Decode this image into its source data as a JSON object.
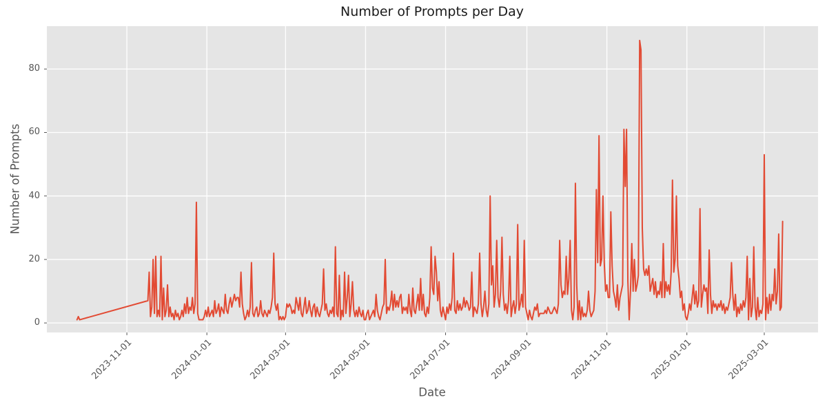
{
  "chart_data": {
    "type": "line",
    "title": "Number of Prompts per Day",
    "xlabel": "Date",
    "ylabel": "Number of Prompts",
    "x_tick_labels": [
      "2023-11-01",
      "2024-01-01",
      "2024-03-01",
      "2024-05-01",
      "2024-07-01",
      "2024-09-01",
      "2024-11-01",
      "2025-01-01",
      "2025-03-01"
    ],
    "y_ticks": [
      0,
      20,
      40,
      60,
      80
    ],
    "xlim": [
      "2023-09-01",
      "2025-04-11"
    ],
    "ylim": [
      -3,
      93.5
    ],
    "grid": true,
    "legend": "none",
    "x_tick_rotation_deg": 45,
    "style": {
      "line_color": "#E24A33",
      "plot_bg": "#E5E5E5",
      "grid_color": "#FFFFFF",
      "tick_color": "#555555",
      "label_color": "#555555",
      "title_color": "#1a1a1a",
      "fig_bg": "#FFFFFF"
    },
    "series": [
      {
        "name": "prompts_per_day",
        "segments": [
          {
            "start": "2023-09-24",
            "values": [
              1,
              2,
              1
            ]
          },
          {
            "start": "2023-11-17",
            "values": [
              7,
              16,
              2,
              5,
              20,
              3,
              21,
              2,
              4,
              2,
              21,
              1,
              11,
              2,
              4,
              12,
              2,
              5,
              2,
              3,
              1,
              4,
              2,
              3,
              1,
              2,
              4,
              2,
              6,
              3,
              8,
              3,
              5,
              4,
              8,
              3,
              6,
              38,
              3,
              1,
              1,
              1,
              1,
              2,
              4,
              2,
              5,
              2,
              3,
              4,
              2,
              7,
              3,
              4,
              6,
              2,
              5,
              4,
              3,
              9,
              4,
              3,
              6,
              8,
              5,
              7,
              9,
              7,
              8,
              8,
              5,
              16,
              6,
              3,
              1,
              2,
              4,
              2,
              5,
              19,
              3,
              2,
              4,
              5,
              2,
              3,
              7,
              3,
              2,
              4,
              3,
              2,
              4,
              3,
              5,
              8,
              22,
              6,
              4,
              6,
              1,
              2,
              1,
              2,
              1,
              2,
              6,
              5,
              6,
              5,
              3,
              4,
              3,
              8,
              6,
              4,
              8,
              3,
              2,
              5,
              8,
              3,
              4,
              7,
              4,
              2,
              5,
              6,
              2,
              5,
              3,
              2,
              4,
              6,
              17,
              4,
              6,
              3,
              2,
              4,
              3,
              5,
              2,
              24,
              3,
              2,
              15,
              1,
              4,
              2,
              16,
              3,
              8,
              15,
              2,
              6,
              13,
              4,
              2,
              4,
              2,
              5,
              3,
              2,
              4,
              1,
              1,
              3,
              4,
              1,
              2,
              3,
              4,
              2,
              9,
              4,
              2,
              1,
              3,
              5,
              6,
              20,
              3,
              5,
              4,
              6,
              10,
              4,
              9,
              5,
              7,
              5,
              8,
              9,
              3,
              5,
              4,
              5,
              3,
              9,
              4,
              2,
              11,
              4,
              3,
              6,
              9,
              4,
              14,
              4,
              9,
              3,
              2,
              5,
              3,
              8,
              24,
              11,
              9,
              21,
              16,
              7,
              13,
              4,
              2,
              5,
              3,
              1,
              5,
              3,
              6,
              4,
              8,
              22,
              4,
              3,
              7,
              4,
              6,
              4,
              5,
              8,
              5,
              7,
              6,
              4,
              5,
              16,
              2,
              5,
              4,
              3,
              6,
              22,
              6,
              2,
              5,
              10,
              4,
              2,
              6,
              40,
              12,
              18,
              5,
              9,
              26,
              8,
              5,
              10,
              27,
              9,
              4,
              6,
              3,
              7,
              21,
              2,
              5,
              7,
              3,
              6,
              31,
              4,
              6,
              9,
              5,
              26,
              5,
              3,
              1,
              4,
              2,
              1,
              3,
              5,
              4,
              6,
              2,
              3,
              3,
              3,
              3,
              4,
              3,
              5,
              4,
              3,
              3,
              4,
              5,
              4,
              3,
              6,
              26,
              12,
              8,
              10,
              9,
              21,
              9,
              14,
              26,
              4,
              1,
              5,
              44,
              12,
              1,
              7,
              1,
              5,
              2,
              3,
              2,
              4,
              10,
              4,
              2,
              3,
              4,
              10,
              42,
              19,
              59,
              18,
              20,
              40,
              19,
              10,
              12,
              8,
              8,
              35,
              18,
              10,
              8,
              5,
              12,
              4,
              8,
              10,
              12,
              61,
              43,
              61,
              13,
              1,
              10,
              25,
              10,
              20,
              10,
              12,
              15,
              89,
              86,
              30,
              17,
              15,
              17,
              15,
              18,
              10,
              12,
              14,
              9,
              13,
              8,
              10,
              9,
              13,
              8,
              25,
              8,
              13,
              10,
              12,
              9,
              16,
              45,
              16,
              20,
              40,
              18,
              14,
              8,
              10,
              4,
              6,
              2,
              1,
              3,
              6,
              4,
              8,
              12,
              6,
              10,
              5,
              7,
              36,
              5,
              9,
              12,
              10,
              11,
              3,
              23,
              9,
              3,
              7,
              5,
              6,
              4,
              6,
              5,
              7,
              4,
              6,
              3,
              5,
              4,
              6,
              8,
              19,
              9,
              4,
              9,
              2,
              5,
              3,
              6,
              4,
              7,
              5,
              8,
              21,
              1,
              14,
              2,
              5,
              24,
              5,
              1,
              8,
              2,
              4,
              3,
              6,
              53,
              1,
              8,
              3,
              9,
              4,
              9,
              7,
              17,
              6,
              10,
              28,
              4,
              5,
              32
            ]
          }
        ]
      }
    ]
  }
}
